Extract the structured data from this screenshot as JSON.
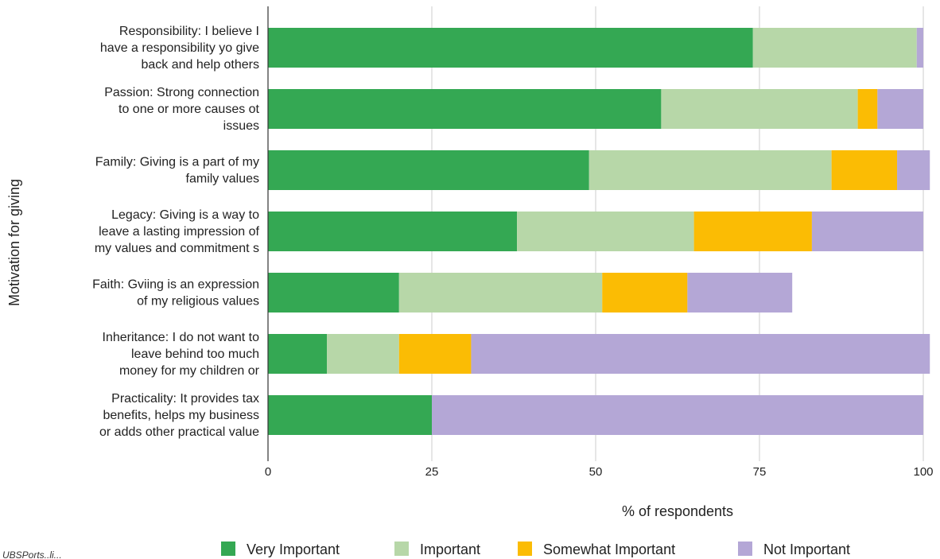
{
  "chart_data": {
    "type": "bar",
    "orientation": "horizontal",
    "stacked": true,
    "xlabel": "% of respondents",
    "ylabel": "Motivation for giving",
    "xlim": [
      0,
      100
    ],
    "xticks": [
      0,
      25,
      50,
      75,
      100
    ],
    "grid": "vertical",
    "legend_position": "bottom",
    "categories": [
      [
        "Responsibility: I believe I",
        "have a responsibility yo give",
        "back and help others"
      ],
      [
        "Passion: Strong connection",
        "to one or more causes ot",
        "issues"
      ],
      [
        "Family: Giving is a part of my",
        "family values"
      ],
      [
        "Legacy:  Giving is a way to",
        "leave a lasting impression of",
        "my values and commitment s"
      ],
      [
        "Faith: Gviing is an expression",
        "of my religious values"
      ],
      [
        "Inheritance:  I do not want to",
        "leave behind too much",
        "money for my children or"
      ],
      [
        "Practicality:  It provides tax",
        "benefits, helps my business",
        "or adds other practical value"
      ]
    ],
    "series": [
      {
        "name": "Very Important",
        "color": "#34a853",
        "values": [
          74,
          60,
          49,
          38,
          20,
          9,
          25
        ]
      },
      {
        "name": "Important",
        "color": "#b7d7a8",
        "values": [
          25,
          30,
          37,
          27,
          31,
          11,
          0
        ]
      },
      {
        "name": "Somewhat Important",
        "color": "#fbbc04",
        "values": [
          0,
          3,
          10,
          18,
          13,
          11,
          0
        ]
      },
      {
        "name": "Not Important",
        "color": "#b4a7d6",
        "values": [
          1,
          7,
          5,
          17,
          16,
          70,
          75
        ]
      }
    ]
  },
  "footnote": "UBSPorts..li..."
}
